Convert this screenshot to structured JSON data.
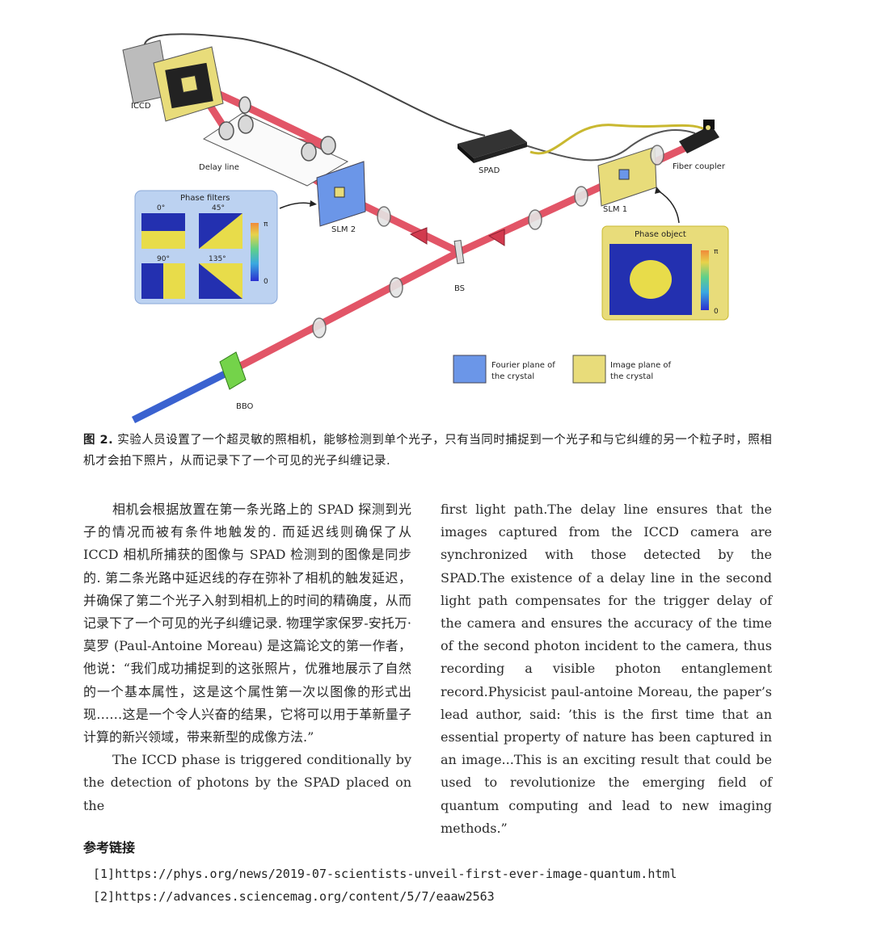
{
  "figure": {
    "labels": {
      "iccd": "ICCD",
      "delay_line": "Delay line",
      "spad": "SPAD",
      "fiber_coupler": "Fiber coupler",
      "slm1": "SLM 1",
      "slm2": "SLM 2",
      "bs": "BS",
      "bbo": "BBO"
    },
    "phase_filters": {
      "title": "Phase filters",
      "angles": [
        "0°",
        "45°",
        "90°",
        "135°"
      ],
      "scale_top": "π",
      "scale_bottom": "0"
    },
    "phase_object": {
      "title": "Phase object",
      "scale_top": "π",
      "scale_bottom": "0"
    },
    "legend": {
      "fourier_line1": "Fourier plane of",
      "fourier_line2": "the crystal",
      "image_line1": "Image plane of",
      "image_line2": "the crystal"
    },
    "colors": {
      "fourier_blue": "#6b96e8",
      "image_yellow": "#e8dc7a",
      "beam_red": "#e0475b",
      "pump_blue": "#3a62d0"
    }
  },
  "caption": {
    "label": "图 2.",
    "text": "实验人员设置了一个超灵敏的照相机，能够检测到单个光子，只有当同时捕捉到一个光子和与它纠缠的另一个粒子时，照相机才会拍下照片，从而记录下了一个可见的光子纠缠记录."
  },
  "body": {
    "left_para1": "相机会根据放置在第一条光路上的 SPAD 探测到光子的情况而被有条件地触发的. 而延迟线则确保了从 ICCD 相机所捕获的图像与 SPAD 检测到的图像是同步的. 第二条光路中延迟线的存在弥补了相机的触发延迟，并确保了第二个光子入射到相机上的时间的精确度，从而记录下了一个可见的光子纠缠记录. 物理学家保罗-安托万·莫罗 (Paul-Antoine Moreau) 是这篇论文的第一作者，他说：“我们成功捕捉到的这张照片，优雅地展示了自然的一个基本属性，这是这个属性第一次以图像的形式出现……这是一个令人兴奋的结果，它将可以用于革新量子计算的新兴领域，带来新型的成像方法.”",
    "left_para2": "The ICCD phase is triggered conditionally by the detection of photons by the SPAD placed on the",
    "right_para": "first light path.The delay line ensures that the images captured from the ICCD camera are synchronized with those detected by the SPAD.The existence of a delay line in the second light path compensates for the trigger delay of the camera and ensures the accuracy of the time of the second photon incident to the camera, thus recording a visible photon entanglement record.Physicist paul-antoine Moreau, the paper’s lead author, said: ’this is the first time that an essential property of nature has been captured in an image...This is an exciting result that could be used to revolutionize the emerging field of quantum computing and lead to new imaging methods.”"
  },
  "references": {
    "heading": "参考链接",
    "items": [
      "[1]https://phys.org/news/2019-07-scientists-unveil-first-ever-image-quantum.html",
      "[2]https://advances.sciencemag.org/content/5/7/eaaw2563"
    ]
  }
}
